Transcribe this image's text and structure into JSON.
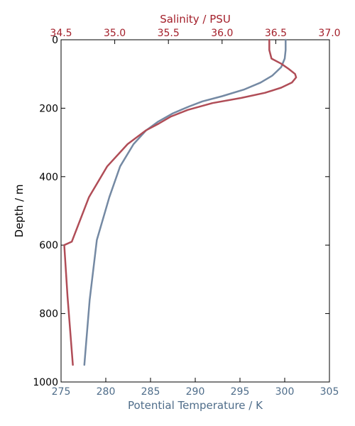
{
  "chart_data": {
    "type": "line",
    "title": "",
    "ylabel": "Depth / m",
    "y_axis": {
      "lim": [
        0,
        1000
      ],
      "inverted": true,
      "ticks": [
        0,
        200,
        400,
        600,
        800,
        1000
      ]
    },
    "grid": false,
    "legend": "none",
    "x_axes": {
      "bottom": {
        "label": "Potential Temperature / K",
        "lim": [
          275,
          305
        ],
        "ticks": [
          275,
          280,
          285,
          290,
          295,
          300,
          305
        ],
        "tick_labels": [
          "275",
          "280",
          "285",
          "290",
          "295",
          "300",
          "305"
        ],
        "color": "#4f6d8a"
      },
      "top": {
        "label": "Salinity / PSU",
        "lim": [
          34.5,
          37.0
        ],
        "ticks": [
          34.5,
          35.0,
          35.5,
          36.0,
          36.5,
          37.0
        ],
        "tick_labels": [
          "34.5",
          "35.0",
          "35.5",
          "36.0",
          "36.5",
          "37.0"
        ],
        "color": "#a31f2a"
      }
    },
    "series": [
      {
        "quantity": "potential_temperature",
        "axis": "bottom",
        "color": "#7489a3",
        "x": [
          300.1,
          300.1,
          300.0,
          299.6,
          298.6,
          297.3,
          295.5,
          293.0,
          290.8,
          289.3,
          287.5,
          285.8,
          284.5,
          283.1,
          281.6,
          280.4,
          279.0,
          278.2,
          277.6
        ],
        "y": [
          0,
          30,
          55,
          80,
          105,
          125,
          145,
          165,
          180,
          195,
          215,
          240,
          265,
          305,
          370,
          460,
          585,
          760,
          950
        ]
      },
      {
        "quantity": "salinity",
        "axis": "top",
        "color": "#b04d57",
        "x": [
          36.44,
          36.44,
          36.46,
          36.55,
          36.62,
          36.68,
          36.69,
          36.65,
          36.55,
          36.4,
          36.18,
          35.91,
          35.68,
          35.52,
          35.41,
          35.29,
          35.12,
          34.93,
          34.76,
          34.6,
          34.53,
          34.56,
          34.61
        ],
        "y": [
          0,
          30,
          55,
          70,
          85,
          100,
          110,
          125,
          140,
          155,
          170,
          185,
          205,
          225,
          245,
          265,
          305,
          370,
          460,
          590,
          600,
          750,
          950
        ]
      }
    ]
  }
}
